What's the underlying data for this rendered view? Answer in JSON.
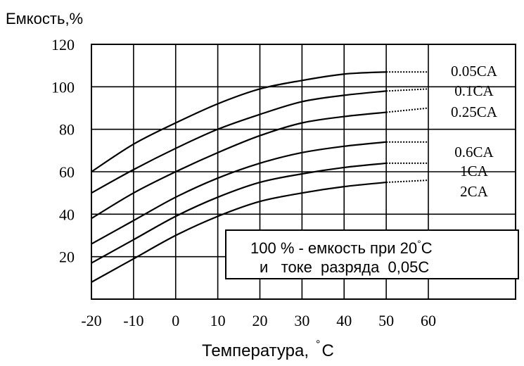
{
  "chart_data": {
    "type": "line",
    "ylabel": "Емкость,%",
    "xlabel_prefix": "Температура,",
    "xlabel_degree": "°",
    "xlabel_unit": "C",
    "x_ticks": [
      -20,
      -10,
      0,
      10,
      20,
      30,
      40,
      50,
      60
    ],
    "y_ticks": [
      20,
      40,
      60,
      80,
      100,
      120
    ],
    "xlim": [
      -20,
      60
    ],
    "ylim": [
      0,
      120
    ],
    "grid": true,
    "series": [
      {
        "name": "0.05CA",
        "x": [
          -20,
          -10,
          0,
          10,
          20,
          30,
          40,
          50
        ],
        "y": [
          60,
          73,
          83,
          92,
          99,
          103,
          106,
          107
        ],
        "extension_end_y": 107
      },
      {
        "name": "0.1CA",
        "x": [
          -20,
          -10,
          0,
          10,
          20,
          30,
          40,
          50
        ],
        "y": [
          50,
          61,
          71,
          80,
          87,
          93,
          96,
          98
        ],
        "extension_end_y": 99
      },
      {
        "name": "0.25CA",
        "x": [
          -20,
          -10,
          0,
          10,
          20,
          30,
          40,
          50
        ],
        "y": [
          38,
          50,
          60,
          69,
          77,
          83,
          86,
          88
        ],
        "extension_end_y": 90
      },
      {
        "name": "0.6CA",
        "x": [
          -20,
          -10,
          0,
          10,
          20,
          30,
          40,
          50
        ],
        "y": [
          26,
          37,
          48,
          57,
          64,
          69,
          72,
          74
        ],
        "extension_end_y": 74
      },
      {
        "name": "1CA",
        "x": [
          -20,
          -10,
          0,
          10,
          20,
          30,
          40,
          50
        ],
        "y": [
          17,
          28,
          39,
          48,
          55,
          59,
          62,
          64
        ],
        "extension_end_y": 64
      },
      {
        "name": "2CA",
        "x": [
          -20,
          -10,
          0,
          10,
          20,
          30,
          40,
          50
        ],
        "y": [
          8,
          19,
          30,
          39,
          46,
          50,
          53,
          55
        ],
        "extension_end_y": 56
      }
    ],
    "annotation": {
      "line1_prefix": "100 % - емкость при 20",
      "line1_degree": "°",
      "line1_unit": "C",
      "line2": "и   токе  разряда  0,05С"
    }
  }
}
